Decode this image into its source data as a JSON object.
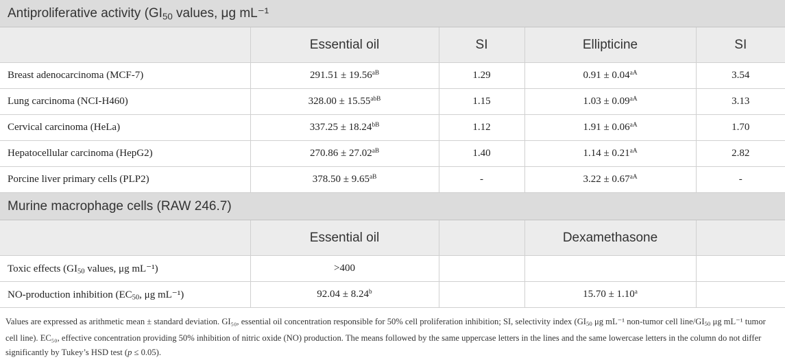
{
  "section1": {
    "title_pre": "Antiproliferative activity (GI",
    "title_sub": "50",
    "title_post": " values, μg mL⁻¹",
    "headers": [
      "",
      "Essential oil",
      "SI",
      "Ellipticine",
      "SI"
    ],
    "rows": [
      {
        "label": "Breast adenocarcinoma (MCF-7)",
        "eo": "291.51 ± 19.56",
        "eo_sup": "aB",
        "si1": "1.29",
        "ell": "0.91 ± 0.04",
        "ell_sup": "aA",
        "si2": "3.54"
      },
      {
        "label": "Lung carcinoma (NCI-H460)",
        "eo": "328.00 ± 15.55",
        "eo_sup": "abB",
        "si1": "1.15",
        "ell": "1.03 ± 0.09",
        "ell_sup": "aA",
        "si2": "3.13"
      },
      {
        "label": "Cervical carcinoma (HeLa)",
        "eo": "337.25 ± 18.24",
        "eo_sup": "bB",
        "si1": "1.12",
        "ell": "1.91 ± 0.06",
        "ell_sup": "aA",
        "si2": "1.70"
      },
      {
        "label": "Hepatocellular carcinoma (HepG2)",
        "eo": "270.86 ± 27.02",
        "eo_sup": "aB",
        "si1": "1.40",
        "ell": "1.14 ± 0.21",
        "ell_sup": "aA",
        "si2": "2.82"
      },
      {
        "label": "Porcine liver primary cells (PLP2)",
        "eo": "378.50 ± 9.65",
        "eo_sup": "aB",
        "si1": "-",
        "ell": "3.22 ± 0.67",
        "ell_sup": "aA",
        "si2": "-"
      }
    ]
  },
  "section2": {
    "title": "Murine macrophage cells (RAW 246.7)",
    "headers": [
      "",
      "Essential oil",
      "",
      "Dexamethasone",
      ""
    ],
    "rows": [
      {
        "label_pre": "Toxic effects (GI",
        "label_sub": "50",
        "label_post": " values, μg mL⁻¹)",
        "eo": ">400",
        "eo_sup": "",
        "dex": "",
        "dex_sup": ""
      },
      {
        "label_pre": "NO-production inhibition (EC",
        "label_sub": "50",
        "label_post": ", μg mL⁻¹)",
        "eo": "92.04 ± 8.24",
        "eo_sup": "b",
        "dex": "15.70 ± 1.10",
        "dex_sup": "a"
      }
    ]
  },
  "footnote": {
    "text1": "Values are expressed as arithmetic mean ± standard deviation. GI₅₀, essential oil concentration responsible for 50% cell proliferation inhibition; SI, selectivity index (GI",
    "sub1": "50",
    "text2": " μg mL⁻¹ non-tumor cell line/GI",
    "sub2": "50",
    "text3": " μg mL⁻¹ tumor cell line). EC₅₀, effective concentration providing 50% inhibition of nitric oxide (NO) production. The means followed by the same uppercase letters in the lines and the same lowercase letters in the column do not differ significantly by Tukey’s HSD test (",
    "italic": "p",
    "text4": " ≤ 0.05)."
  }
}
